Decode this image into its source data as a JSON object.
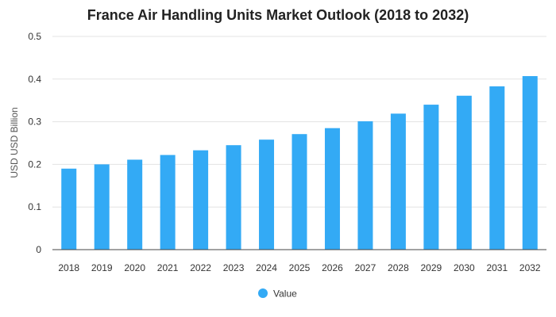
{
  "chart_data": {
    "type": "bar",
    "title": "France Air Handling Units Market Outlook (2018 to 2032)",
    "xlabel": "",
    "ylabel": "USD USD Billion",
    "categories": [
      "2018",
      "2019",
      "2020",
      "2021",
      "2022",
      "2023",
      "2024",
      "2025",
      "2026",
      "2027",
      "2028",
      "2029",
      "2030",
      "2031",
      "2032"
    ],
    "series": [
      {
        "name": "Value",
        "color": "#33aaf5",
        "values": [
          0.19,
          0.2,
          0.211,
          0.222,
          0.233,
          0.245,
          0.258,
          0.271,
          0.285,
          0.301,
          0.319,
          0.34,
          0.361,
          0.383,
          0.407
        ]
      }
    ],
    "ylim": [
      0,
      0.5
    ],
    "yticks": [
      "0",
      "0.1",
      "0.2",
      "0.3",
      "0.4",
      "0.5"
    ],
    "grid": true,
    "legend_position": "bottom-center"
  }
}
